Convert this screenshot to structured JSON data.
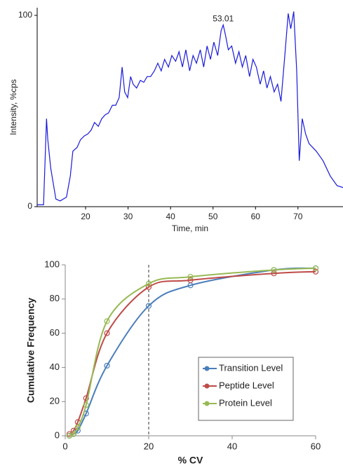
{
  "chart_data": [
    {
      "type": "line",
      "x_label": "Time, min",
      "y_label": "Intensity, %cps",
      "x": [
        8.6,
        10.1,
        10.8,
        11.1,
        11.8,
        13,
        14,
        15.5,
        16.4,
        17,
        18,
        18.8,
        19.7,
        20.5,
        21.3,
        22.1,
        23,
        23.8,
        24.6,
        25.4,
        26.3,
        27.1,
        27.9,
        28.6,
        29.2,
        29.9,
        30.6,
        31.2,
        32,
        32.9,
        33.7,
        34.5,
        35.3,
        36.2,
        37,
        37.8,
        38.6,
        39.5,
        40.3,
        41.2,
        42,
        42.8,
        43.6,
        44.5,
        45.3,
        46.1,
        47,
        47.8,
        48.6,
        49.4,
        50.2,
        51.1,
        51.9,
        52.4,
        52.9,
        53.6,
        54.4,
        55.3,
        56.1,
        56.9,
        57.7,
        58.6,
        59.4,
        60.2,
        61.1,
        61.9,
        62.7,
        63.5,
        64.4,
        65.2,
        66,
        66.9,
        67.7,
        68.3,
        69,
        69.7,
        70.3,
        71,
        71.8,
        72.6,
        74.3,
        75.9,
        77.6,
        79.2,
        80.6
      ],
      "series": [
        {
          "color": "#1a1adb",
          "values": [
            1,
            1,
            46,
            35,
            20,
            4,
            3,
            5,
            16,
            29,
            31,
            35,
            37,
            38,
            40,
            44,
            42,
            46,
            48,
            49,
            53,
            53,
            57,
            73,
            60,
            57,
            68,
            64,
            62,
            66,
            65,
            68,
            68,
            71,
            75,
            71,
            77,
            73,
            79,
            76,
            81,
            73,
            82,
            71,
            79,
            75,
            82,
            73,
            84,
            77,
            86,
            79,
            92,
            95,
            90,
            82,
            84,
            75,
            81,
            73,
            79,
            68,
            77,
            73,
            64,
            71,
            62,
            68,
            60,
            64,
            55,
            79,
            101,
            93,
            102,
            71,
            24,
            46,
            38,
            33,
            29,
            24,
            16,
            11,
            10
          ]
        }
      ],
      "annotations": [
        {
          "text": "53.01"
        }
      ],
      "xlim": [
        8.6,
        80.6
      ],
      "ylim": [
        0,
        104
      ],
      "xticks": [
        20,
        30,
        40,
        50,
        60,
        70
      ],
      "yticks": [
        0,
        100
      ],
      "smooth": false
    },
    {
      "type": "line",
      "x_label": "% CV",
      "y_label": "Cumulative Frequency",
      "x": [
        1,
        2,
        3,
        5,
        10,
        20,
        30,
        50,
        60
      ],
      "series": [
        {
          "name": "Transition Level",
          "color": "#4a7ebb",
          "values": [
            0,
            1,
            3,
            13,
            41,
            76,
            88,
            97,
            98
          ]
        },
        {
          "name": "Peptide Level",
          "color": "#be4b48",
          "values": [
            1,
            3,
            8,
            22,
            60,
            87,
            91,
            95,
            96
          ]
        },
        {
          "name": "Protein Level",
          "color": "#98b954",
          "values": [
            0,
            1,
            5,
            18,
            67,
            89,
            93,
            97,
            98
          ]
        }
      ],
      "vlines": [
        20
      ],
      "xlim": [
        0,
        60
      ],
      "ylim": [
        0,
        100
      ],
      "xticks": [
        0,
        20,
        40,
        60
      ],
      "yticks": [
        0,
        20,
        40,
        60,
        80,
        100
      ],
      "smooth": true,
      "legend": "lower right"
    }
  ]
}
